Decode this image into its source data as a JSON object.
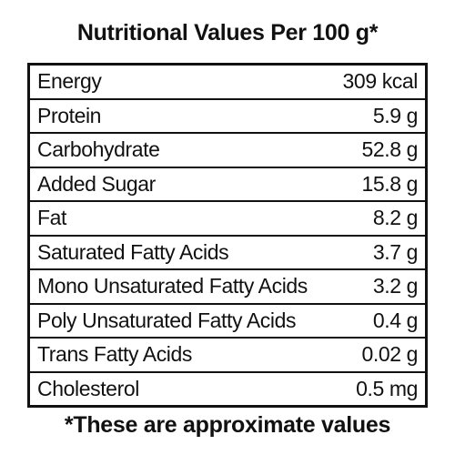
{
  "title": "Nutritional Values Per 100 g*",
  "table": {
    "rows": [
      [
        "Energy",
        "309 kcal"
      ],
      [
        "Protein",
        "5.9 g"
      ],
      [
        "Carbohydrate",
        "52.8 g"
      ],
      [
        "Added Sugar",
        "15.8 g"
      ],
      [
        "Fat",
        "8.2 g"
      ],
      [
        "Saturated Fatty Acids",
        "3.7 g"
      ],
      [
        "Mono Unsaturated Fatty Acids",
        "3.2 g"
      ],
      [
        "Poly Unsaturated Fatty Acids",
        "0.4 g"
      ],
      [
        "Trans Fatty Acids",
        "0.02 g"
      ],
      [
        "Cholesterol",
        "0.5 mg"
      ]
    ]
  },
  "footnote": "*These are approximate values"
}
